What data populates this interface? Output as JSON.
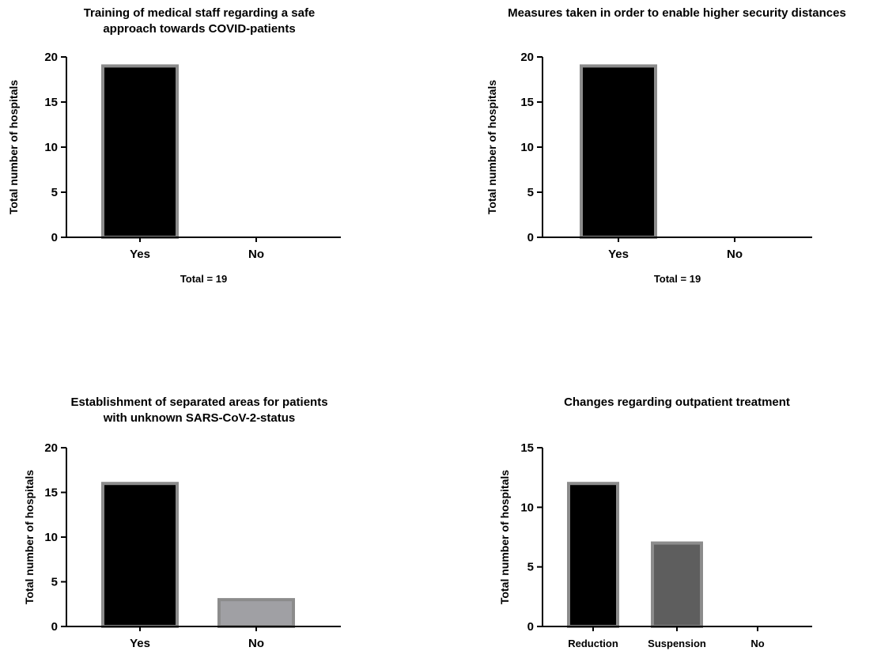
{
  "chart_data": [
    {
      "type": "bar",
      "title": [
        "Training of medical staff regarding a safe",
        "approach towards COVID-patients"
      ],
      "ylabel": "Total number of hospitals",
      "xlabel": "Total = 19",
      "categories": [
        "Yes",
        "No"
      ],
      "values": [
        19,
        0
      ],
      "bar_colors": [
        "#000000",
        "#9e9e9e"
      ],
      "ylim": [
        0,
        20
      ],
      "yticks": [
        0,
        5,
        10,
        15,
        20
      ],
      "grid": false,
      "legend": "none"
    },
    {
      "type": "bar",
      "title": [
        "Measures taken in order to enable higher security distances"
      ],
      "ylabel": "Total number of hospitals",
      "xlabel": "Total = 19",
      "categories": [
        "Yes",
        "No"
      ],
      "values": [
        19,
        0
      ],
      "bar_colors": [
        "#000000",
        "#9e9e9e"
      ],
      "ylim": [
        0,
        20
      ],
      "yticks": [
        0,
        5,
        10,
        15,
        20
      ],
      "grid": false,
      "legend": "none"
    },
    {
      "type": "bar",
      "title": [
        "Establishment of separated areas for patients",
        "with unknown SARS-CoV-2-status"
      ],
      "ylabel": "Total number of hospitals",
      "xlabel": "",
      "categories": [
        "Yes",
        "No"
      ],
      "values": [
        16,
        3
      ],
      "bar_colors": [
        "#000000",
        "#a0a0a4"
      ],
      "ylim": [
        0,
        20
      ],
      "yticks": [
        0,
        5,
        10,
        15,
        20
      ],
      "grid": false,
      "legend": "none"
    },
    {
      "type": "bar",
      "title": [
        "Changes regarding outpatient treatment"
      ],
      "ylabel": "Total number of hospitals",
      "xlabel": "",
      "categories": [
        "Reduction",
        "Suspension",
        "No"
      ],
      "values": [
        12,
        7,
        0
      ],
      "bar_colors": [
        "#000000",
        "#5e5e5e",
        "#9e9e9e"
      ],
      "ylim": [
        0,
        15
      ],
      "yticks": [
        0,
        5,
        10,
        15
      ],
      "grid": false,
      "legend": "none"
    }
  ]
}
